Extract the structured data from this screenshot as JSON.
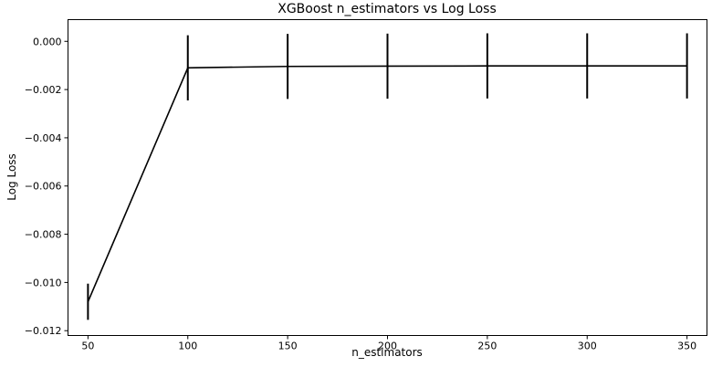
{
  "chart_data": {
    "type": "line",
    "title": "XGBoost n_estimators vs Log Loss",
    "xlabel": "n_estimators",
    "ylabel": "Log Loss",
    "xlim": [
      40,
      360
    ],
    "ylim": [
      -0.0122,
      0.0009
    ],
    "grid": false,
    "legend": "none",
    "x_ticks": [
      50,
      100,
      150,
      200,
      250,
      300,
      350
    ],
    "x_tick_labels": [
      "50",
      "100",
      "150",
      "200",
      "250",
      "300",
      "350"
    ],
    "y_ticks": [
      0.0,
      -0.002,
      -0.004,
      -0.006,
      -0.008,
      -0.01,
      -0.012
    ],
    "y_tick_labels": [
      "0.000",
      "−0.002",
      "−0.004",
      "−0.006",
      "−0.008",
      "−0.010",
      "−0.012"
    ],
    "series": [
      {
        "x": [
          50,
          100,
          150,
          200,
          250,
          300,
          350
        ],
        "y": [
          -0.0108,
          -0.0011,
          -0.00104,
          -0.00103,
          -0.00102,
          -0.00102,
          -0.00102
        ],
        "error": [
          0.00075,
          0.00135,
          0.00135,
          0.00135,
          0.00135,
          0.00135,
          0.00135
        ],
        "color": "#000000"
      }
    ]
  }
}
